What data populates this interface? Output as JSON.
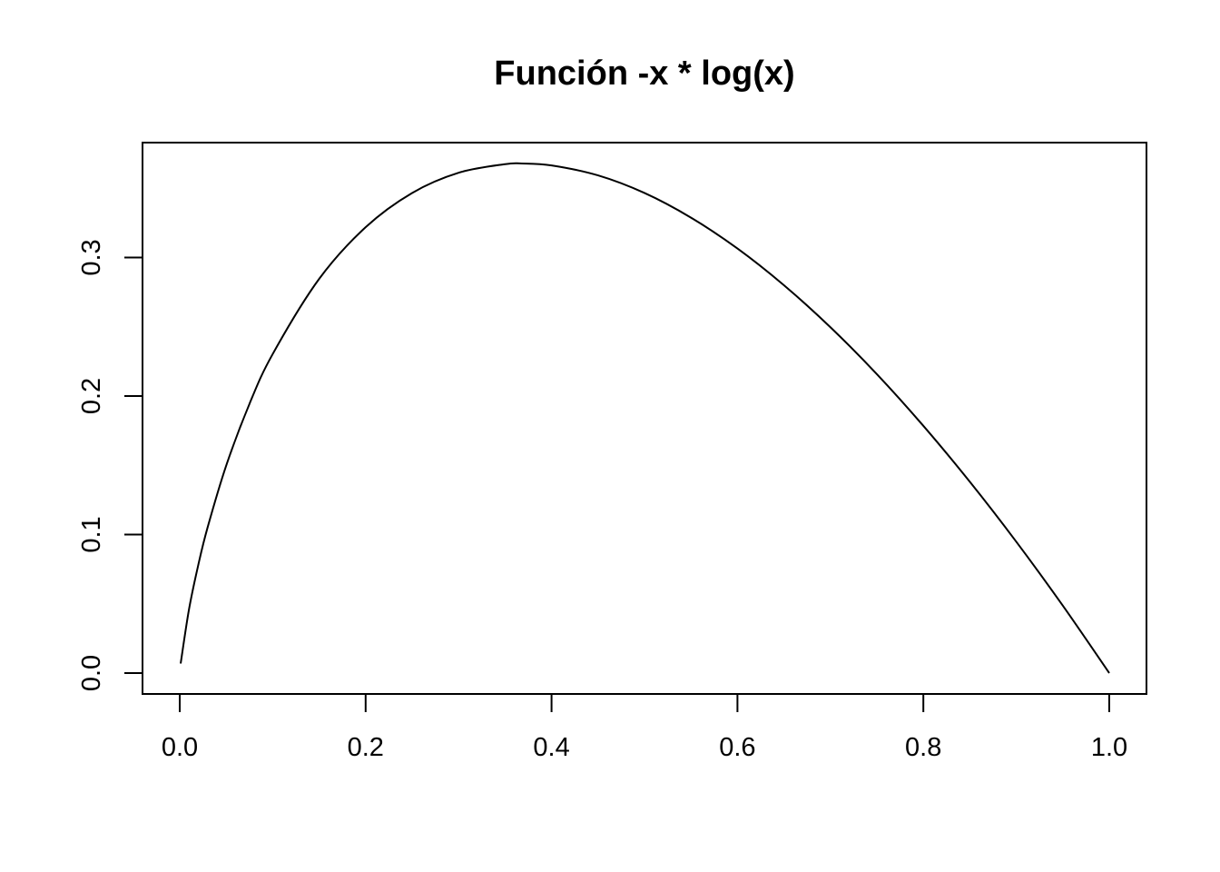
{
  "chart_data": {
    "type": "line",
    "title": "Función -x * log(x)",
    "xlabel": "",
    "ylabel": "",
    "xlim": [
      0,
      1
    ],
    "ylim": [
      0,
      0.3678794
    ],
    "grid": false,
    "x_ticks": [
      0.0,
      0.2,
      0.4,
      0.6,
      0.8,
      1.0
    ],
    "x_tick_labels": [
      "0.0",
      "0.2",
      "0.4",
      "0.6",
      "0.8",
      "1.0"
    ],
    "y_ticks": [
      0.0,
      0.1,
      0.2,
      0.3
    ],
    "y_tick_labels": [
      "0.0",
      "0.1",
      "0.2",
      "0.3"
    ],
    "series": [
      {
        "color": "#000000",
        "x": [
          0.001,
          0.01,
          0.02,
          0.03,
          0.05,
          0.075,
          0.1,
          0.15,
          0.2,
          0.25,
          0.3,
          0.35,
          0.3679,
          0.4,
          0.45,
          0.5,
          0.55,
          0.6,
          0.65,
          0.7,
          0.75,
          0.8,
          0.85,
          0.9,
          0.95,
          1.0
        ],
        "y": [
          0.0069,
          0.0461,
          0.0782,
          0.1052,
          0.1498,
          0.1943,
          0.2303,
          0.2846,
          0.3219,
          0.3466,
          0.3612,
          0.3674,
          0.3679,
          0.3665,
          0.3593,
          0.3466,
          0.3288,
          0.3065,
          0.28,
          0.2497,
          0.2158,
          0.1785,
          0.1381,
          0.0948,
          0.0487,
          0.0
        ]
      }
    ]
  }
}
